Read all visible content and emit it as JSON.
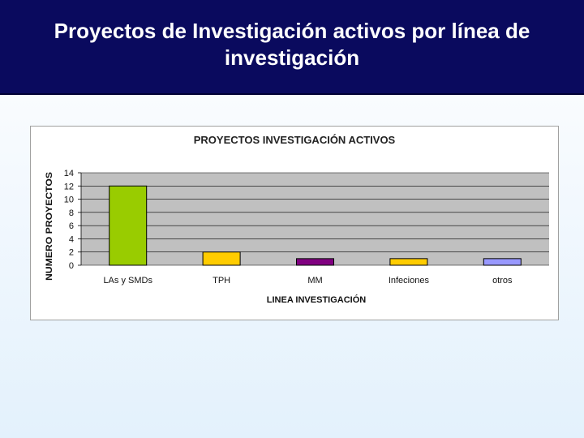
{
  "page": {
    "title": "Proyectos de Investigación activos por línea de investigación"
  },
  "colors": {
    "header_bg": "#0a0a5e",
    "plot_bg": "#c0c0c0",
    "grid": "#000000"
  },
  "chart_data": {
    "type": "bar",
    "title": "PROYECTOS INVESTIGACIÓN ACTIVOS",
    "xlabel": "LINEA INVESTIGACIÓN",
    "ylabel": "NUMERO PROYECTOS",
    "categories": [
      "LAs y SMDs",
      "TPH",
      "MM",
      "Infeciones",
      "otros"
    ],
    "values": [
      12,
      2,
      1,
      1,
      1
    ],
    "bar_colors": [
      "#99cc00",
      "#ffcc00",
      "#800080",
      "#ffcc00",
      "#9999ff"
    ],
    "ylim": [
      0,
      14
    ],
    "yticks": [
      0,
      2,
      4,
      6,
      8,
      10,
      12,
      14
    ],
    "grid": true,
    "legend": "none"
  }
}
